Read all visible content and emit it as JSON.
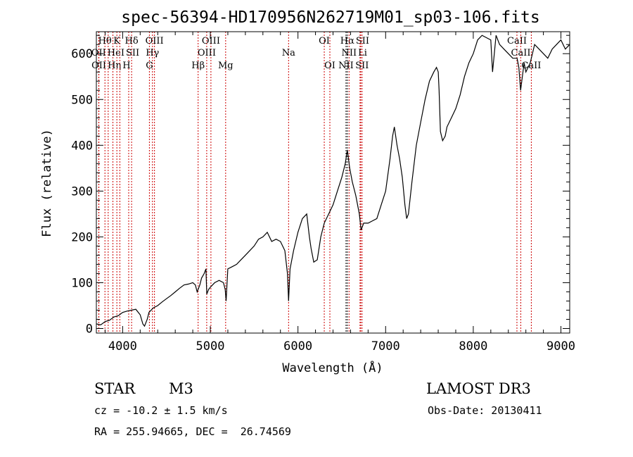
{
  "chart_data": {
    "type": "line",
    "title": "spec-56394-HD170956N262719M01_sp03-106.fits",
    "xlabel": "Wavelength (Å)",
    "ylabel": "Flux (relative)",
    "xlim": [
      3700,
      9100
    ],
    "ylim": [
      -10,
      648
    ],
    "xticks": [
      4000,
      5000,
      6000,
      7000,
      8000,
      9000
    ],
    "yticks": [
      0,
      100,
      200,
      300,
      400,
      500,
      600
    ],
    "grid": false,
    "series": [
      {
        "name": "spectrum",
        "x": [
          3700,
          3750,
          3800,
          3850,
          3900,
          3950,
          4000,
          4050,
          4100,
          4150,
          4200,
          4230,
          4250,
          4280,
          4300,
          4350,
          4400,
          4450,
          4500,
          4550,
          4600,
          4650,
          4700,
          4750,
          4800,
          4830,
          4850,
          4880,
          4900,
          4930,
          4950,
          4960,
          4980,
          5000,
          5050,
          5100,
          5150,
          5170,
          5180,
          5200,
          5250,
          5300,
          5350,
          5400,
          5450,
          5500,
          5550,
          5600,
          5650,
          5700,
          5750,
          5800,
          5850,
          5880,
          5893,
          5910,
          5950,
          6000,
          6050,
          6100,
          6130,
          6150,
          6180,
          6220,
          6260,
          6300,
          6350,
          6400,
          6450,
          6500,
          6540,
          6563,
          6590,
          6620,
          6660,
          6700,
          6720,
          6750,
          6800,
          6850,
          6900,
          6950,
          7000,
          7050,
          7080,
          7100,
          7130,
          7160,
          7190,
          7220,
          7240,
          7260,
          7300,
          7350,
          7400,
          7450,
          7500,
          7550,
          7580,
          7600,
          7610,
          7625,
          7650,
          7680,
          7700,
          7750,
          7800,
          7850,
          7900,
          7950,
          8000,
          8050,
          8100,
          8150,
          8200,
          8220,
          8240,
          8260,
          8300,
          8350,
          8400,
          8450,
          8500,
          8520,
          8540,
          8560,
          8580,
          8600,
          8650,
          8700,
          8750,
          8800,
          8850,
          8900,
          8950,
          9000,
          9050,
          9100
        ],
        "y": [
          10,
          8,
          15,
          18,
          25,
          28,
          35,
          38,
          40,
          42,
          30,
          10,
          5,
          20,
          35,
          45,
          50,
          58,
          65,
          72,
          80,
          88,
          95,
          97,
          100,
          95,
          80,
          95,
          110,
          120,
          130,
          75,
          85,
          90,
          100,
          105,
          100,
          85,
          60,
          130,
          135,
          140,
          150,
          160,
          170,
          180,
          195,
          200,
          210,
          190,
          195,
          190,
          170,
          120,
          60,
          130,
          170,
          210,
          240,
          250,
          200,
          175,
          145,
          150,
          200,
          230,
          250,
          270,
          300,
          330,
          360,
          390,
          350,
          320,
          290,
          250,
          215,
          230,
          230,
          235,
          240,
          270,
          300,
          370,
          420,
          440,
          400,
          370,
          330,
          270,
          240,
          250,
          320,
          400,
          450,
          500,
          540,
          560,
          570,
          560,
          520,
          430,
          410,
          420,
          440,
          460,
          480,
          510,
          550,
          580,
          600,
          630,
          640,
          635,
          630,
          560,
          600,
          640,
          620,
          610,
          600,
          590,
          590,
          570,
          520,
          550,
          580,
          560,
          580,
          620,
          610,
          600,
          590,
          610,
          620,
          630,
          610,
          620
        ]
      }
    ],
    "line_markers": [
      {
        "label": "Hθ",
        "wavelength": 3798,
        "row": 1,
        "color": "#cc0000"
      },
      {
        "label": "K",
        "wavelength": 3934,
        "row": 1,
        "color": "#cc0000"
      },
      {
        "label": "Hδ",
        "wavelength": 4102,
        "row": 1,
        "color": "#cc0000"
      },
      {
        "label": "OIII",
        "wavelength": 4363,
        "row": 1,
        "color": "#cc0000"
      },
      {
        "label": "OIII",
        "wavelength": 5007,
        "row": 1,
        "color": "#cc0000"
      },
      {
        "label": "OI",
        "wavelength": 6300,
        "row": 1,
        "color": "#cc0000"
      },
      {
        "label": "Hα",
        "wavelength": 6563,
        "row": 1,
        "color": "#000000"
      },
      {
        "label": "SII",
        "wavelength": 6716,
        "row": 1,
        "color": "#cc0000"
      },
      {
        "label": "CaII",
        "wavelength": 8498,
        "row": 1,
        "color": "#cc0000"
      },
      {
        "label": "OII",
        "wavelength": 3727,
        "row": 2,
        "color": "#cc0000"
      },
      {
        "label": "HeI",
        "wavelength": 3889,
        "row": 2,
        "color": "#cc0000"
      },
      {
        "label": "SII",
        "wavelength": 4069,
        "row": 2,
        "color": "#cc0000"
      },
      {
        "label": "Hγ",
        "wavelength": 4340,
        "row": 2,
        "color": "#cc0000"
      },
      {
        "label": "OIII",
        "wavelength": 4959,
        "row": 2,
        "color": "#cc0000"
      },
      {
        "label": "Na",
        "wavelength": 5893,
        "row": 2,
        "color": "#cc0000"
      },
      {
        "label": "NII",
        "wavelength": 6583,
        "row": 2,
        "color": "#cc0000"
      },
      {
        "label": "Li",
        "wavelength": 6708,
        "row": 2,
        "color": "#cc0000"
      },
      {
        "label": "CaII",
        "wavelength": 8542,
        "row": 2,
        "color": "#cc0000"
      },
      {
        "label": "OII",
        "wavelength": 3729,
        "row": 3,
        "color": "#cc0000"
      },
      {
        "label": "Hη",
        "wavelength": 3835,
        "row": 3,
        "color": "#cc0000"
      },
      {
        "label": "H",
        "wavelength": 3968,
        "row": 3,
        "color": "#cc0000"
      },
      {
        "label": "G",
        "wavelength": 4305,
        "row": 3,
        "color": "#cc0000"
      },
      {
        "label": "Hβ",
        "wavelength": 4861,
        "row": 3,
        "color": "#cc0000"
      },
      {
        "label": "Mg",
        "wavelength": 5175,
        "row": 3,
        "color": "#cc0000"
      },
      {
        "label": "OI",
        "wavelength": 6364,
        "row": 3,
        "color": "#cc0000"
      },
      {
        "label": "NII",
        "wavelength": 6548,
        "row": 3,
        "color": "#000000"
      },
      {
        "label": "SII",
        "wavelength": 6731,
        "row": 3,
        "color": "#cc0000"
      },
      {
        "label": "CaII",
        "wavelength": 8662,
        "row": 3,
        "color": "#cc0000"
      }
    ]
  },
  "info": {
    "class": "STAR",
    "subclass": "M3",
    "survey": "LAMOST DR3",
    "cz": "cz = -10.2 ± 1.5 km/s",
    "obs_date": "Obs-Date: 20130411",
    "coords": "RA = 255.94665, DEC =  26.74569"
  }
}
